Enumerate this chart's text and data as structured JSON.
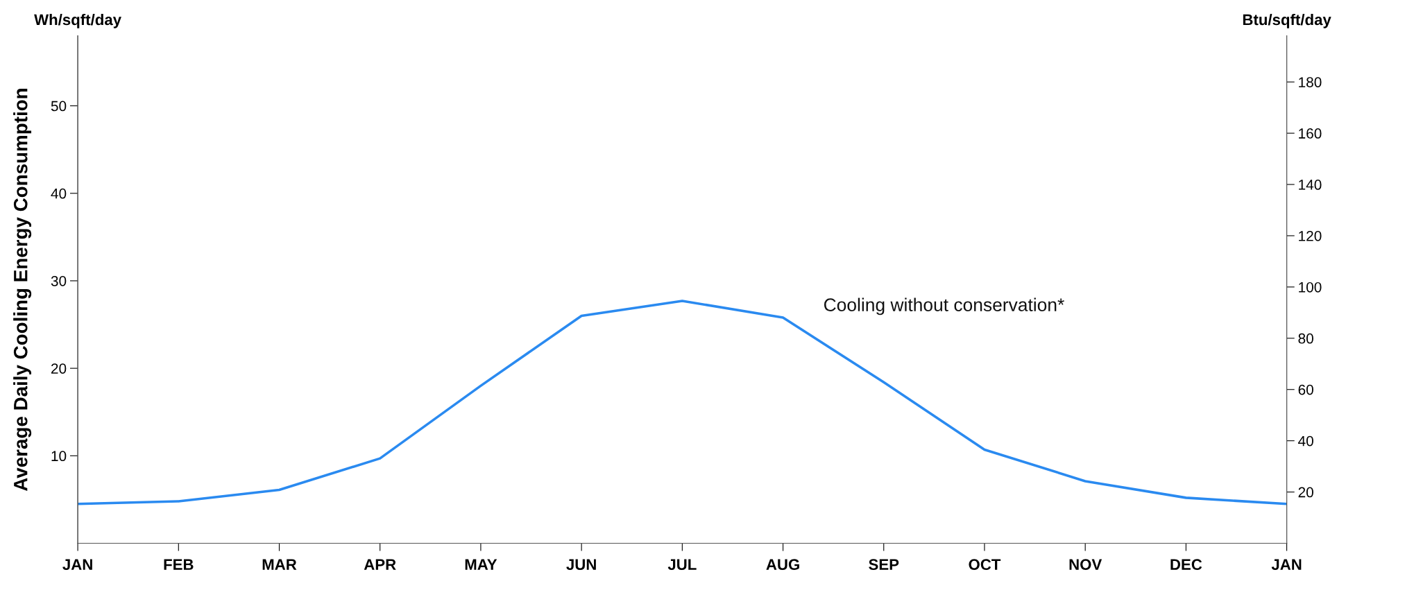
{
  "chart_data": {
    "type": "line",
    "ylabel": "Average Daily Cooling Energy Consumption",
    "y2label": "Btu/sqft/day",
    "annotations": [
      "Wh/sqft/day"
    ],
    "categories": [
      "JAN",
      "FEB",
      "MAR",
      "APR",
      "MAY",
      "JUN",
      "JUL",
      "AUG",
      "SEP",
      "OCT",
      "NOV",
      "DEC",
      "JAN"
    ],
    "ylim": [
      0,
      58
    ],
    "yticks": [
      10,
      20,
      30,
      40,
      50
    ],
    "y2lim": [
      0,
      198
    ],
    "y2ticks": [
      20,
      40,
      60,
      80,
      100,
      120,
      140,
      160,
      180
    ],
    "series": [
      {
        "name": "Cooling without conservation*",
        "color": "#2a8af0",
        "values": [
          4.5,
          4.8,
          6.1,
          9.7,
          18.0,
          26.0,
          27.7,
          25.8,
          18.4,
          10.7,
          7.1,
          5.2,
          4.5
        ]
      }
    ],
    "grid": false,
    "legend": false,
    "marker": "none",
    "line_style": "solid"
  }
}
